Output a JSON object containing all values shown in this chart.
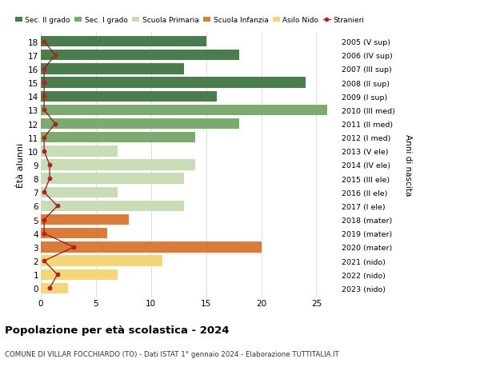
{
  "ages": [
    18,
    17,
    16,
    15,
    14,
    13,
    12,
    11,
    10,
    9,
    8,
    7,
    6,
    5,
    4,
    3,
    2,
    1,
    0
  ],
  "bar_values": [
    15,
    18,
    13,
    24,
    16,
    26,
    18,
    14,
    7,
    14,
    13,
    7,
    13,
    8,
    6,
    20,
    11,
    7,
    2.5
  ],
  "bar_colors": [
    "#4a7c4e",
    "#4a7c4e",
    "#4a7c4e",
    "#4a7c4e",
    "#4a7c4e",
    "#7daa6f",
    "#7daa6f",
    "#7daa6f",
    "#c8ddb5",
    "#c8ddb5",
    "#c8ddb5",
    "#c8ddb5",
    "#c8ddb5",
    "#d97c3b",
    "#d97c3b",
    "#d97c3b",
    "#f5d57a",
    "#f5d57a",
    "#f5d57a"
  ],
  "stranieri_values": [
    0.3,
    1.3,
    0.3,
    0.3,
    0.3,
    0.3,
    1.3,
    0.3,
    0.3,
    0.8,
    0.8,
    0.3,
    1.5,
    0.3,
    0.3,
    3.0,
    0.3,
    1.5,
    0.8
  ],
  "right_labels": [
    "2005 (V sup)",
    "2006 (IV sup)",
    "2007 (III sup)",
    "2008 (II sup)",
    "2009 (I sup)",
    "2010 (III med)",
    "2011 (II med)",
    "2012 (I med)",
    "2013 (V ele)",
    "2014 (IV ele)",
    "2015 (III ele)",
    "2016 (II ele)",
    "2017 (I ele)",
    "2018 (mater)",
    "2019 (mater)",
    "2020 (mater)",
    "2021 (nido)",
    "2022 (nido)",
    "2023 (nido)"
  ],
  "legend_labels": [
    "Sec. II grado",
    "Sec. I grado",
    "Scuola Primaria",
    "Scuola Infanzia",
    "Asilo Nido",
    "Stranieri"
  ],
  "legend_colors": [
    "#4a7c4e",
    "#7daa6f",
    "#c8ddb5",
    "#d97c3b",
    "#f5d57a",
    "#b22222"
  ],
  "title": "Popolazione per età scolastica - 2024",
  "subtitle": "COMUNE DI VILLAR FOCCHIARDO (TO) - Dati ISTAT 1° gennaio 2024 - Elaborazione TUTTITALIA.IT",
  "xlabel_right": "Anni di nascita",
  "ylabel": "Ètà alunni",
  "xlim": [
    0,
    27
  ],
  "background_color": "#ffffff",
  "bar_height": 0.78,
  "grid_color": "#dddddd"
}
